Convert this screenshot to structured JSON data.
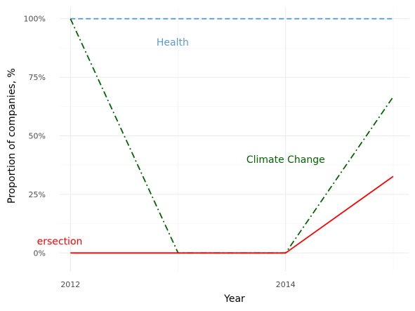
{
  "chart_data": {
    "type": "line",
    "title": "",
    "xlabel": "Year",
    "ylabel": "Proportion of companies, %",
    "x": [
      2012,
      2013,
      2014,
      2015
    ],
    "x_tick_values": [
      2012,
      2014
    ],
    "x_tick_labels": [
      "2012",
      "2014"
    ],
    "xlim": [
      2011.9,
      2015.15
    ],
    "ylim": [
      -0.08,
      1.05
    ],
    "y_tick_values": [
      0,
      0.25,
      0.5,
      0.75,
      1.0
    ],
    "y_tick_labels": [
      "0%",
      "25%",
      "50%",
      "75%",
      "100%"
    ],
    "grid": true,
    "legend": "none",
    "series": [
      {
        "name": "Health",
        "label": "Health",
        "values": [
          1.0,
          1.0,
          1.0,
          1.0
        ],
        "color": "#5b9bd5",
        "style": "dashed",
        "label_at": [
          2012.95,
          0.9
        ]
      },
      {
        "name": "Climate Change",
        "label": "Climate Change",
        "values": [
          1.0,
          0.0,
          0.0,
          0.667
        ],
        "color": "#006400",
        "style": "dashdot",
        "label_at": [
          2014.0,
          0.4
        ]
      },
      {
        "name": "Intersection",
        "label": "ersection",
        "values": [
          0.0,
          0.0,
          0.0,
          0.327
        ],
        "color": "#ff0000",
        "style": "solid",
        "label_at": [
          2011.9,
          0.05
        ]
      }
    ]
  }
}
